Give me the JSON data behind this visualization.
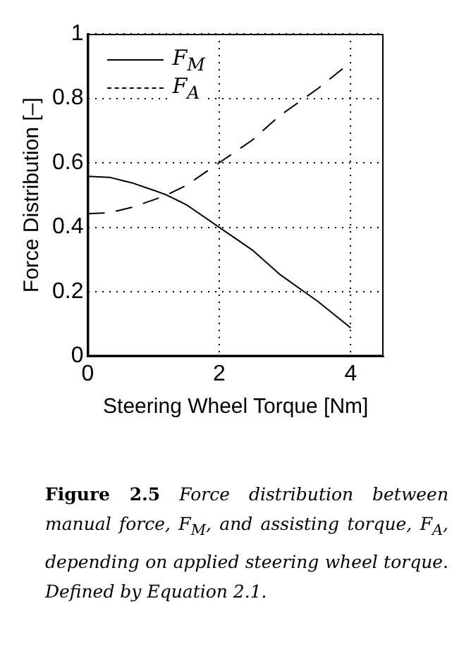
{
  "chart_data": {
    "type": "line",
    "xlabel": "Steering Wheel Torque [Nm]",
    "ylabel": "Force Distribution [–]",
    "xlim": [
      0,
      4.5
    ],
    "xticks": [
      0,
      2,
      4
    ],
    "ylim": [
      0,
      1
    ],
    "yticks": [
      0,
      0.2,
      0.4,
      0.6,
      0.8,
      1
    ],
    "grid": true,
    "legend": "top left",
    "marker": "none",
    "series": [
      {
        "name": "F$_{M}$",
        "color": "#000000",
        "line_style": "solid",
        "x": [
          0,
          0.33,
          0.67,
          1,
          1.2,
          1.5,
          2,
          2.5,
          2.92,
          3.5,
          4
        ],
        "values": [
          0.558,
          0.555,
          0.538,
          0.515,
          0.5,
          0.47,
          0.4,
          0.33,
          0.254,
          0.17,
          0.088
        ]
      },
      {
        "name": "F$_{A}$",
        "color": "#000000",
        "line_style": "dashed",
        "x": [
          0,
          0.33,
          0.67,
          1,
          1.2,
          1.5,
          2,
          2.5,
          2.92,
          3.5,
          4
        ],
        "values": [
          0.442,
          0.445,
          0.462,
          0.485,
          0.5,
          0.53,
          0.6,
          0.67,
          0.746,
          0.83,
          0.912
        ]
      }
    ],
    "annotations": [
      "Figure 2.5",
      "Force distribution between manual force, F$_{M}$, and assisting torque, F$_{A}$, depending on applied steering wheel torque. Defined by Equation 2.1."
    ]
  }
}
